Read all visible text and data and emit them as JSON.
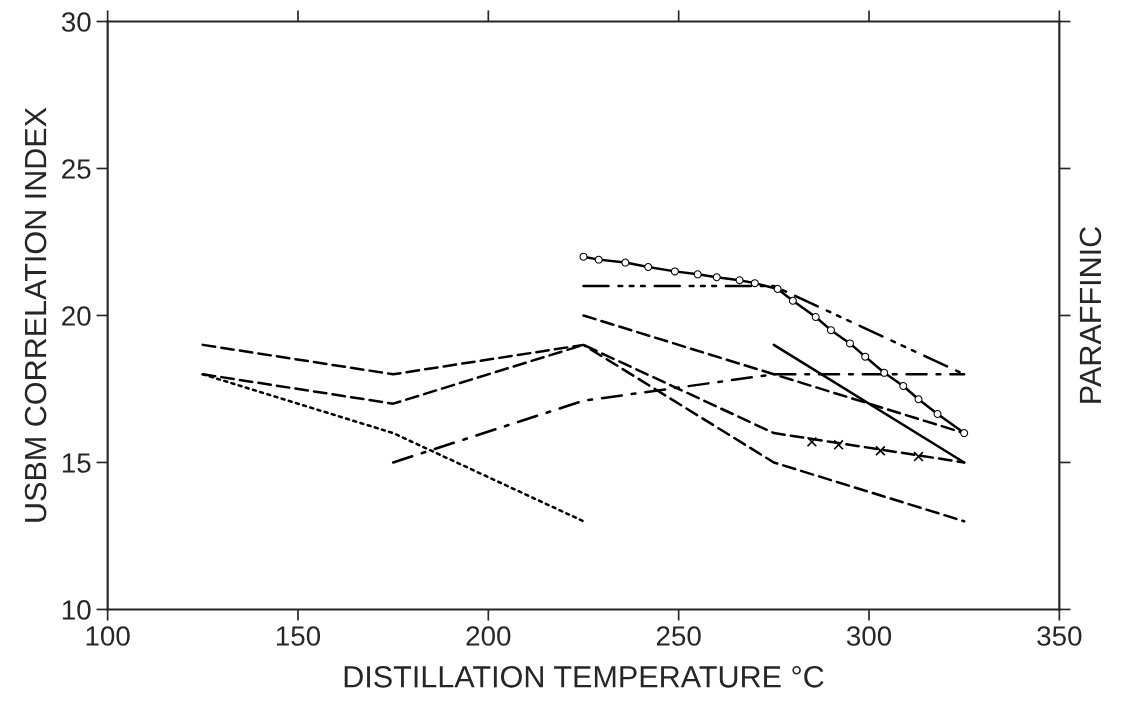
{
  "chart_data": {
    "type": "line",
    "xlabel": "DISTILLATION TEMPERATURE °C",
    "ylabel": "USBM CORRELATION INDEX",
    "y2label": "PARAFFINIC",
    "xlim": [
      100,
      350
    ],
    "xticks": [
      100,
      150,
      200,
      250,
      300,
      350
    ],
    "ylim": [
      10,
      30
    ],
    "yticks": [
      10,
      15,
      20,
      25,
      30
    ],
    "grid": false,
    "series": [
      {
        "color": "#000000",
        "line_style": "dashed",
        "marker": "none",
        "x": [
          125,
          175,
          225,
          275,
          325
        ],
        "values": [
          19,
          18,
          19,
          15,
          13
        ]
      },
      {
        "color": "#000000",
        "line_style": "dashed",
        "marker": "none",
        "x": [
          125,
          175,
          225,
          275,
          325
        ],
        "values": [
          18,
          17,
          19,
          16,
          15
        ]
      },
      {
        "type": "scatter",
        "color": "#000000",
        "marker": "cross",
        "x": [
          285,
          292,
          303,
          313
        ],
        "values": [
          15.7,
          15.6,
          15.4,
          15.2
        ]
      },
      {
        "color": "#000000",
        "line_style": "dotted",
        "marker": "none",
        "x": [
          125,
          175,
          225
        ],
        "values": [
          18,
          16,
          13
        ]
      },
      {
        "color": "#000000",
        "line_style": "dashdot",
        "marker": "none",
        "x": [
          175,
          225,
          275,
          325
        ],
        "values": [
          15,
          17.1,
          18,
          18
        ]
      },
      {
        "color": "#000000",
        "line_style": "dashed",
        "marker": "none",
        "x": [
          225,
          325
        ],
        "values": [
          20,
          16
        ]
      },
      {
        "color": "#000000",
        "line_style": "solid",
        "marker": "none",
        "x": [
          275,
          325
        ],
        "values": [
          19,
          15
        ]
      },
      {
        "color": "#000000",
        "line_style": "dashdotdot",
        "marker": "none",
        "x": [
          225,
          275,
          325
        ],
        "values": [
          21,
          21,
          18
        ]
      },
      {
        "color": "#000000",
        "line_style": "solid",
        "marker": "circle",
        "x": [
          225,
          229,
          236,
          242,
          249,
          255,
          260,
          266,
          270,
          276,
          280,
          286,
          290,
          295,
          299,
          304,
          309,
          313,
          318,
          325
        ],
        "values": [
          22,
          21.9,
          21.8,
          21.65,
          21.5,
          21.4,
          21.3,
          21.2,
          21.1,
          20.9,
          20.5,
          19.95,
          19.5,
          19.05,
          18.6,
          18.05,
          17.6,
          17.15,
          16.65,
          16
        ]
      }
    ]
  }
}
